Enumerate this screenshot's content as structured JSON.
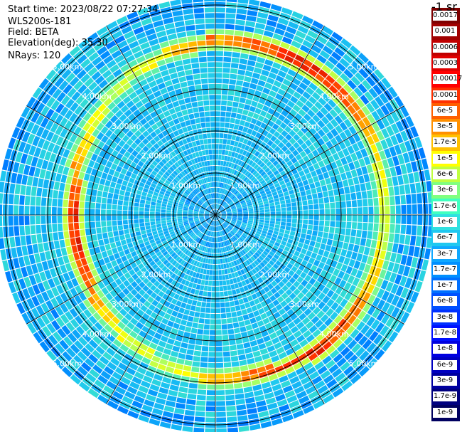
{
  "info": {
    "start_time": "Start time: 2023/08/22 07:27:34",
    "device": "WLS200s-181",
    "field": "Field: BETA",
    "elevation": "Elevation(deg): 35.30",
    "nrays": "NRays: 120"
  },
  "colorbar": {
    "unit": "-1 sr",
    "labels": [
      "0.0017",
      "0.001",
      "0.0006",
      "0.0003",
      "0.00017",
      "0.0001",
      "6e-5",
      "3e-5",
      "1.7e-5",
      "1e-5",
      "6e-6",
      "3e-6",
      "1.7e-6",
      "1e-6",
      "6e-7",
      "3e-7",
      "1.7e-7",
      "1e-7",
      "6e-8",
      "3e-8",
      "1.7e-8",
      "1e-8",
      "6e-9",
      "3e-9",
      "1.7e-9",
      "1e-9"
    ],
    "colors": [
      "#7f0000",
      "#a00000",
      "#c00000",
      "#e00000",
      "#ff0000",
      "#ff3000",
      "#ff6000",
      "#ff9000",
      "#ffc000",
      "#ffff00",
      "#c0ff40",
      "#80ff80",
      "#40ffc0",
      "#30e0e0",
      "#20c8f0",
      "#10a8ff",
      "#0090ff",
      "#0070ff",
      "#0050ff",
      "#0030ff",
      "#0010ff",
      "#0000e0",
      "#0000c0",
      "#0000a0",
      "#00007f",
      "#000060"
    ]
  },
  "chart_data": {
    "type": "heatmap",
    "projection": "polar (PPI scan)",
    "field": "BETA",
    "n_rays": 120,
    "range_rings_km": [
      1,
      2,
      3,
      4,
      5
    ],
    "range_ring_labels": [
      "1.00km",
      "2.00km",
      "3.00km",
      "4.00km",
      "5.00km"
    ],
    "max_range_km": 5.2,
    "colorscale": "log10 backscatter (1e-9 to 0.0017 sr^-1)",
    "features": [
      {
        "description": "elevated aerosol layer ring",
        "range_km": [
          3.5,
          4.1
        ],
        "beta": 3e-05
      },
      {
        "description": "near-field background",
        "range_km": [
          0,
          2.5
        ],
        "beta": 1e-07
      }
    ]
  }
}
